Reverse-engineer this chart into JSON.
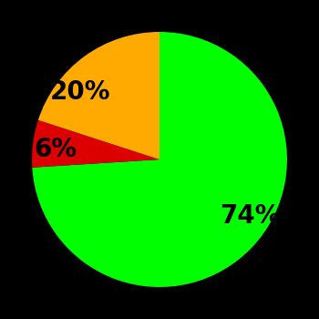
{
  "slices": [
    74,
    6,
    20
  ],
  "labels": [
    "74%",
    "6%",
    "20%"
  ],
  "colors": [
    "#00ff00",
    "#dd0000",
    "#ffaa00"
  ],
  "background_color": "#000000",
  "label_fontsize": 20,
  "label_fontweight": "bold",
  "startangle": 90,
  "counterclock": false,
  "labeldistance": 0.65,
  "figsize": [
    3.5,
    3.5
  ],
  "dpi": 100
}
